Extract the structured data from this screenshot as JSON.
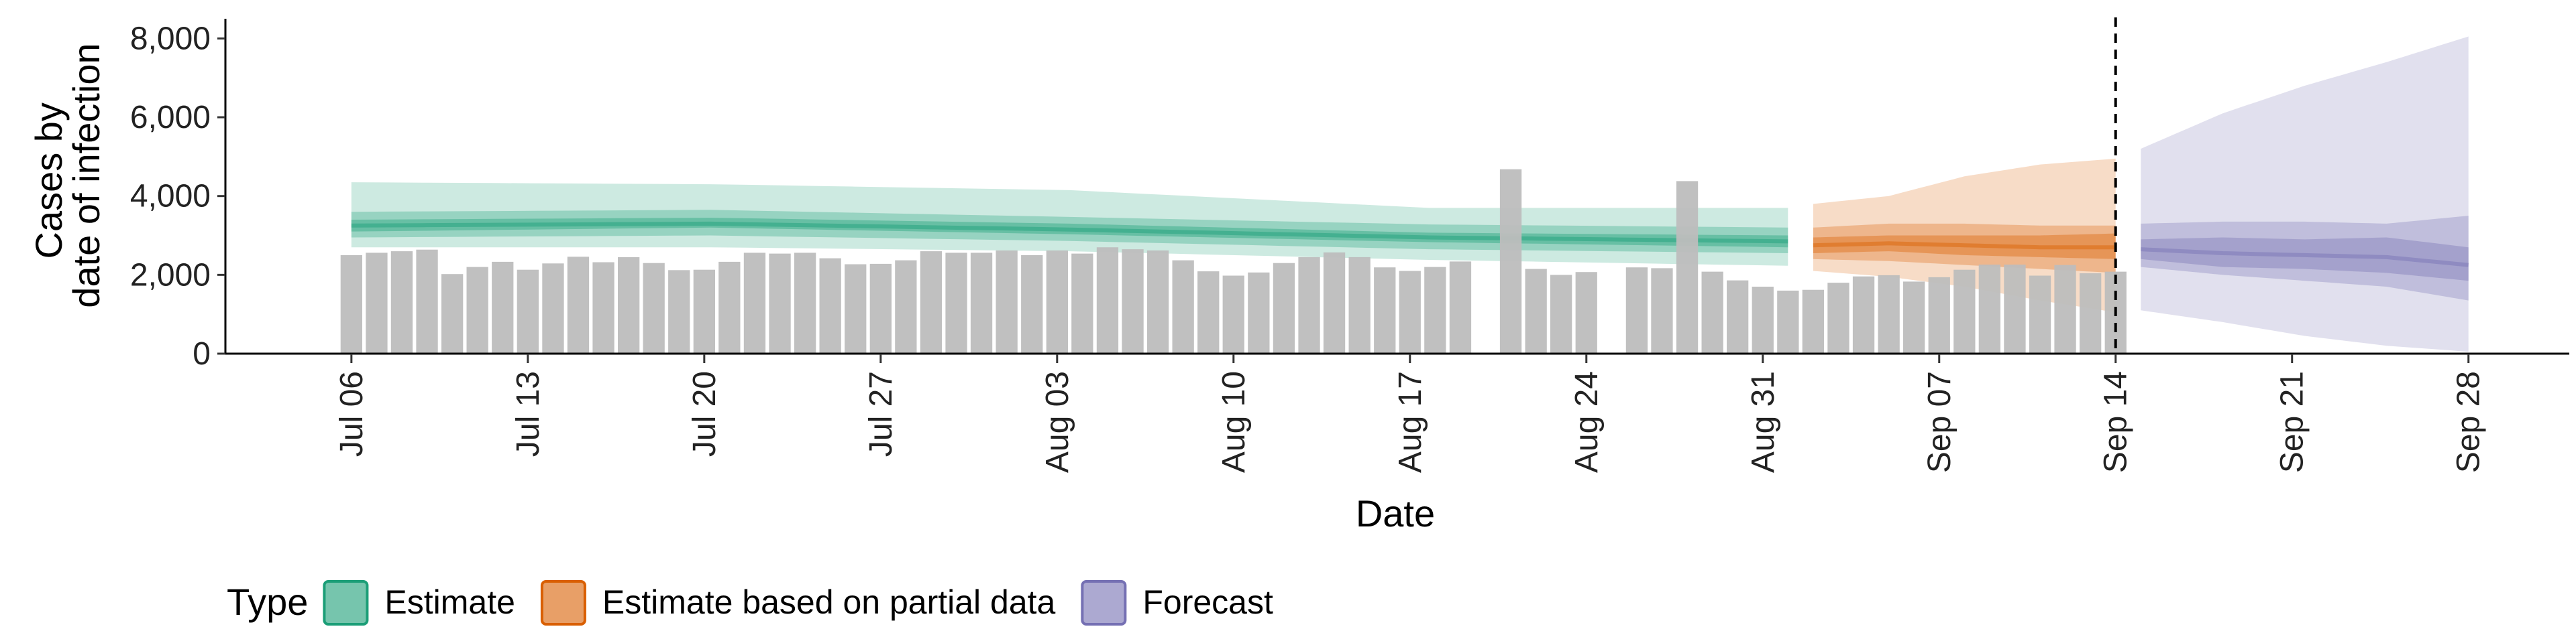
{
  "chart_data": {
    "type": "bar",
    "xlabel": "Date",
    "ylabel_lines": [
      "Cases by",
      "date of infection"
    ],
    "ylim": [
      0,
      8500
    ],
    "y_ticks": [
      0,
      2000,
      4000,
      6000,
      8000
    ],
    "y_tick_labels": [
      "0",
      "2,000",
      "4,000",
      "6,000",
      "8,000"
    ],
    "x_ticks": [
      "2020-07-06",
      "2020-07-13",
      "2020-07-20",
      "2020-07-27",
      "2020-08-03",
      "2020-08-10",
      "2020-08-17",
      "2020-08-24",
      "2020-08-31",
      "2020-09-07",
      "2020-09-14",
      "2020-09-21",
      "2020-09-28"
    ],
    "x_tick_labels": [
      "Jul 06",
      "Jul 13",
      "Jul 20",
      "Jul 27",
      "Aug 03",
      "Aug 10",
      "Aug 17",
      "Aug 24",
      "Aug 31",
      "Sep 07",
      "Sep 14",
      "Sep 21",
      "Sep 28"
    ],
    "x_range": [
      "2020-07-01",
      "2020-10-02"
    ],
    "reference_line": "2020-09-14",
    "grid": false,
    "legend_position": "bottom",
    "legend": {
      "title": "Type",
      "entries": [
        {
          "label": "Estimate",
          "color": "#1b9e77"
        },
        {
          "label": "Estimate based on partial data",
          "color": "#d95f02"
        },
        {
          "label": "Forecast",
          "color": "#7570b3"
        }
      ]
    },
    "bar_color": "#bdbdbd",
    "bars": {
      "start": "2020-07-06",
      "values": [
        2500,
        2560,
        2600,
        2640,
        2020,
        2200,
        2330,
        2130,
        2290,
        2460,
        2320,
        2450,
        2300,
        2120,
        2130,
        2330,
        2560,
        2540,
        2560,
        2420,
        2270,
        2280,
        2370,
        2600,
        2560,
        2560,
        2620,
        2500,
        2620,
        2540,
        2700,
        2650,
        2620,
        2370,
        2090,
        1980,
        2060,
        2300,
        2450,
        2570,
        2450,
        2190,
        2100,
        2200,
        2340,
        null,
        4680,
        2150,
        2000,
        2070,
        null,
        2190,
        2170,
        4380,
        2080,
        1860,
        1700,
        1600,
        1620,
        1800,
        1960,
        1990,
        1830,
        1940,
        2130,
        2260,
        2260,
        1980,
        2250,
        2040,
        2080
      ]
    },
    "series": [
      {
        "name": "Estimate",
        "color": "#1b9e77",
        "x_start": "2020-07-06",
        "x_end": "2020-09-01",
        "knots": [
          0,
          0.25,
          0.5,
          0.75,
          1
        ],
        "median": [
          3250,
          3300,
          3150,
          2950,
          2850
        ],
        "inner": [
          [
            3100,
            3400
          ],
          [
            3200,
            3450
          ],
          [
            3030,
            3300
          ],
          [
            2830,
            3070
          ],
          [
            2700,
            3000
          ]
        ],
        "mid": [
          [
            2950,
            3600
          ],
          [
            3000,
            3650
          ],
          [
            2860,
            3470
          ],
          [
            2650,
            3280
          ],
          [
            2550,
            3200
          ]
        ],
        "outer": [
          [
            2700,
            4350
          ],
          [
            2700,
            4300
          ],
          [
            2600,
            4150
          ],
          [
            2380,
            3700
          ],
          [
            2230,
            3700
          ]
        ]
      },
      {
        "name": "Estimate based on partial data",
        "color": "#d95f02",
        "x_start": "2020-09-02",
        "x_end": "2020-09-14",
        "knots": [
          0,
          0.25,
          0.5,
          0.75,
          1
        ],
        "median": [
          2750,
          2800,
          2750,
          2700,
          2700
        ],
        "inner": [
          [
            2550,
            2950
          ],
          [
            2600,
            3000
          ],
          [
            2500,
            3000
          ],
          [
            2450,
            3000
          ],
          [
            2400,
            3050
          ]
        ],
        "mid": [
          [
            2400,
            3200
          ],
          [
            2350,
            3300
          ],
          [
            2250,
            3300
          ],
          [
            2150,
            3250
          ],
          [
            2050,
            3250
          ]
        ],
        "outer": [
          [
            2100,
            3800
          ],
          [
            1950,
            4000
          ],
          [
            1700,
            4500
          ],
          [
            1350,
            4800
          ],
          [
            1050,
            4950
          ]
        ]
      },
      {
        "name": "Forecast",
        "color": "#7570b3",
        "x_start": "2020-09-15",
        "x_end": "2020-09-28",
        "knots": [
          0,
          0.25,
          0.5,
          0.75,
          1
        ],
        "median": [
          2650,
          2550,
          2500,
          2450,
          2250
        ],
        "inner": [
          [
            2400,
            2900
          ],
          [
            2200,
            2950
          ],
          [
            2150,
            2900
          ],
          [
            2050,
            2950
          ],
          [
            1850,
            2700
          ]
        ],
        "mid": [
          [
            2200,
            3300
          ],
          [
            2000,
            3350
          ],
          [
            1850,
            3350
          ],
          [
            1700,
            3300
          ],
          [
            1350,
            3500
          ]
        ],
        "outer": [
          [
            1100,
            5200
          ],
          [
            800,
            6100
          ],
          [
            450,
            6800
          ],
          [
            200,
            7400
          ],
          [
            50,
            8050
          ]
        ]
      }
    ]
  }
}
